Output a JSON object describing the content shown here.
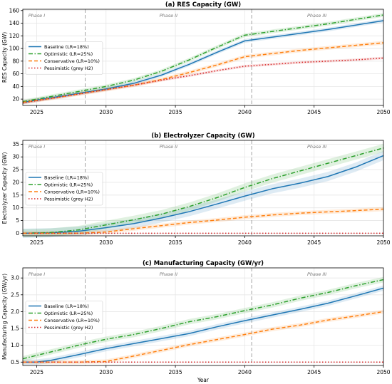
{
  "chart_data": [
    {
      "type": "line",
      "title": "(a) RES Capacity (GW)",
      "xlabel": "",
      "ylabel": "RES Capacity (GW)",
      "xlim": [
        2024,
        2050
      ],
      "ylim": [
        10,
        162
      ],
      "yticks": [
        20,
        40,
        60,
        80,
        100,
        120,
        140,
        160
      ],
      "xticks": [
        2025,
        2030,
        2035,
        2040,
        2045,
        2050
      ],
      "grid": true,
      "legend_placement": "center-left",
      "phase_dividers": [
        2028.5,
        2040.5
      ],
      "phases": [
        {
          "label": "Phase I",
          "x": 2025.0
        },
        {
          "label": "Phase II",
          "x": 2034.5
        },
        {
          "label": "Phase III",
          "x": 2045.2
        }
      ],
      "series": [
        {
          "name": "Baseline (LR=18%)",
          "color": "#1f77b4",
          "dash": "solid",
          "x": [
            2024,
            2026,
            2028,
            2030,
            2032,
            2034,
            2036,
            2038,
            2040,
            2042,
            2044,
            2046,
            2048,
            2050
          ],
          "y": [
            15,
            22,
            29,
            36,
            45,
            58,
            75,
            94,
            112,
            118,
            124,
            130,
            137,
            144
          ],
          "band": 3
        },
        {
          "name": "Optimistic (LR=25%)",
          "color": "#2ca02c",
          "dash": "dashdot",
          "x": [
            2024,
            2026,
            2028,
            2030,
            2032,
            2034,
            2036,
            2038,
            2040,
            2042,
            2044,
            2046,
            2048,
            2050
          ],
          "y": [
            16,
            24,
            32,
            40,
            50,
            64,
            82,
            102,
            121,
            127,
            133,
            139,
            146,
            153
          ],
          "band": 3
        },
        {
          "name": "Conservative (LR=10%)",
          "color": "#ff7f0e",
          "dash": "dashed",
          "x": [
            2024,
            2026,
            2028,
            2030,
            2032,
            2034,
            2036,
            2038,
            2040,
            2042,
            2044,
            2046,
            2048,
            2050
          ],
          "y": [
            15,
            21,
            28,
            35,
            42,
            51,
            62,
            74,
            87,
            92,
            97,
            101,
            105,
            109
          ],
          "band": 3
        },
        {
          "name": "Pessimistic (grey H2)",
          "color": "#d62728",
          "dash": "dotted",
          "x": [
            2024,
            2026,
            2028,
            2030,
            2032,
            2034,
            2036,
            2038,
            2040,
            2042,
            2044,
            2046,
            2048,
            2050
          ],
          "y": [
            14,
            21,
            28,
            35,
            42,
            50,
            57,
            65,
            72,
            75,
            78,
            80,
            82,
            85
          ],
          "band": 2
        }
      ]
    },
    {
      "type": "line",
      "title": "(b) Electrolyzer Capacity (GW)",
      "xlabel": "",
      "ylabel": "Electrolyzer Capacity (GW)",
      "xlim": [
        2024,
        2050
      ],
      "ylim": [
        -1,
        36.5
      ],
      "yticks": [
        0,
        5,
        10,
        15,
        20,
        25,
        30,
        35
      ],
      "xticks": [
        2025,
        2030,
        2035,
        2040,
        2045,
        2050
      ],
      "grid": true,
      "legend_placement": "center-left",
      "phase_dividers": [
        2028.5,
        2040.5
      ],
      "phases": [
        {
          "label": "Phase I",
          "x": 2025.0
        },
        {
          "label": "Phase II",
          "x": 2034.5
        },
        {
          "label": "Phase III",
          "x": 2045.2
        }
      ],
      "series": [
        {
          "name": "Baseline (LR=18%)",
          "color": "#1f77b4",
          "dash": "solid",
          "x": [
            2024,
            2026,
            2028,
            2030,
            2032,
            2034,
            2036,
            2038,
            2040,
            2042,
            2044,
            2046,
            2048,
            2050
          ],
          "y": [
            0,
            0.2,
            0.8,
            2.2,
            3.8,
            6.0,
            8.5,
            11.5,
            14.6,
            17.5,
            19.7,
            22.3,
            26.0,
            30.5
          ],
          "band": 1.8
        },
        {
          "name": "Optimistic (LR=25%)",
          "color": "#2ca02c",
          "dash": "dashdot",
          "x": [
            2024,
            2026,
            2028,
            2030,
            2032,
            2034,
            2036,
            2038,
            2040,
            2042,
            2044,
            2046,
            2048,
            2050
          ],
          "y": [
            0,
            0.3,
            1.3,
            3.3,
            5.3,
            7.5,
            10.5,
            14.0,
            18.0,
            21.5,
            24.5,
            27.5,
            30.5,
            33.5
          ],
          "band": 1.6
        },
        {
          "name": "Conservative (LR=10%)",
          "color": "#ff7f0e",
          "dash": "dashed",
          "x": [
            2024,
            2026,
            2028,
            2030,
            2032,
            2034,
            2036,
            2038,
            2040,
            2042,
            2044,
            2046,
            2048,
            2050
          ],
          "y": [
            0,
            0,
            0,
            0.5,
            1.8,
            3.0,
            4.2,
            5.2,
            6.3,
            7.2,
            7.9,
            8.4,
            8.9,
            9.5
          ],
          "band": 0.8
        },
        {
          "name": "Pessimistic (grey H2)",
          "color": "#d62728",
          "dash": "dotted",
          "x": [
            2024,
            2050
          ],
          "y": [
            0,
            0
          ],
          "band": 0
        }
      ]
    },
    {
      "type": "line",
      "title": "(c) Manufacturing Capacity (GW/yr)",
      "xlabel": "Year",
      "ylabel": "Manufacturing Capacity (GW/yr)",
      "xlim": [
        2024,
        2050
      ],
      "ylim": [
        0.4,
        3.3
      ],
      "yticks": [
        0.5,
        1.0,
        1.5,
        2.0,
        2.5,
        3.0
      ],
      "xticks": [
        2025,
        2030,
        2035,
        2040,
        2045,
        2050
      ],
      "grid": true,
      "legend_placement": "center-left",
      "phase_dividers": [
        2028.5,
        2040.5
      ],
      "phases": [
        {
          "label": "Phase I",
          "x": 2025.0
        },
        {
          "label": "Phase II",
          "x": 2034.5
        },
        {
          "label": "Phase III",
          "x": 2045.2
        }
      ],
      "series": [
        {
          "name": "Baseline (LR=18%)",
          "color": "#1f77b4",
          "dash": "solid",
          "x": [
            2024,
            2025,
            2026,
            2028,
            2030,
            2032,
            2034,
            2036,
            2038,
            2040,
            2042,
            2044,
            2046,
            2048,
            2050
          ],
          "y": [
            0.5,
            0.5,
            0.55,
            0.72,
            0.9,
            1.05,
            1.2,
            1.35,
            1.55,
            1.73,
            1.9,
            2.07,
            2.25,
            2.47,
            2.7
          ],
          "band": 0.08
        },
        {
          "name": "Optimistic (LR=25%)",
          "color": "#2ca02c",
          "dash": "dashdot",
          "x": [
            2024,
            2026,
            2028,
            2030,
            2032,
            2034,
            2036,
            2038,
            2040,
            2042,
            2044,
            2046,
            2048,
            2050
          ],
          "y": [
            0.6,
            0.8,
            1.0,
            1.18,
            1.32,
            1.5,
            1.7,
            1.85,
            2.03,
            2.2,
            2.4,
            2.57,
            2.77,
            2.95
          ],
          "band": 0.08
        },
        {
          "name": "Conservative (LR=10%)",
          "color": "#ff7f0e",
          "dash": "dashed",
          "x": [
            2024,
            2028,
            2030,
            2032,
            2034,
            2036,
            2038,
            2040,
            2042,
            2044,
            2046,
            2048,
            2050
          ],
          "y": [
            0.5,
            0.5,
            0.52,
            0.68,
            0.85,
            1.02,
            1.17,
            1.32,
            1.48,
            1.6,
            1.75,
            1.87,
            2.0
          ],
          "band": 0.06
        },
        {
          "name": "Pessimistic (grey H2)",
          "color": "#d62728",
          "dash": "dotted",
          "x": [
            2024,
            2050
          ],
          "y": [
            0.5,
            0.5
          ],
          "band": 0
        }
      ]
    }
  ]
}
